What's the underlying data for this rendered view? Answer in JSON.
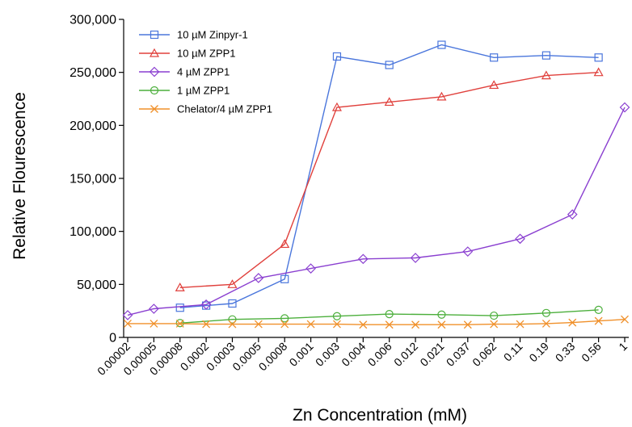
{
  "chart_data": {
    "type": "line",
    "xlabel": "Zn Concentration (mM)",
    "ylabel": "Relative Flourescence",
    "ylim": [
      0,
      300000
    ],
    "yticks": [
      "0",
      "50,000",
      "100,000",
      "150,000",
      "200,000",
      "250,000",
      "300,000"
    ],
    "yticks_values": [
      0,
      50000,
      100000,
      150000,
      200000,
      250000,
      300000
    ],
    "categories": [
      "0.00002",
      "0.00005",
      "0.00008",
      "0.0002",
      "0.0003",
      "0.0005",
      "0.0008",
      "0.001",
      "0.003",
      "0.004",
      "0.006",
      "0.012",
      "0.021",
      "0.037",
      "0.062",
      "0.11",
      "0.19",
      "0.33",
      "0.56",
      "1"
    ],
    "legend_position": "top-left",
    "grid": false,
    "series": [
      {
        "name": "10 µM Zinpyr-1",
        "color": "#4a76dc",
        "marker": "square",
        "values": [
          null,
          null,
          28000,
          30000,
          32000,
          null,
          55000,
          null,
          265000,
          null,
          257000,
          null,
          276000,
          null,
          264000,
          null,
          266000,
          null,
          264000,
          null
        ]
      },
      {
        "name": "10 µM ZPP1",
        "color": "#e0403c",
        "marker": "triangle",
        "values": [
          null,
          null,
          47000,
          null,
          50000,
          null,
          88000,
          null,
          217000,
          null,
          222000,
          null,
          227000,
          null,
          238000,
          null,
          247000,
          null,
          250000,
          null
        ]
      },
      {
        "name": "4 µM ZPP1",
        "color": "#8a3fd0",
        "marker": "diamond",
        "values": [
          21000,
          27000,
          null,
          31000,
          null,
          56000,
          null,
          65000,
          null,
          74000,
          null,
          75000,
          null,
          81000,
          null,
          93000,
          null,
          116000,
          null,
          217000
        ]
      },
      {
        "name": "1 µM ZPP1",
        "color": "#4caf3c",
        "marker": "circle",
        "values": [
          null,
          null,
          13500,
          null,
          17000,
          null,
          18000,
          null,
          20000,
          null,
          22000,
          null,
          21500,
          null,
          20500,
          null,
          23000,
          null,
          26000,
          null
        ]
      },
      {
        "name": "Chelator/4 µM ZPP1",
        "color": "#f0902a",
        "marker": "x",
        "values": [
          13000,
          13000,
          13000,
          12500,
          12500,
          12500,
          12500,
          12500,
          12500,
          12000,
          12000,
          12000,
          12000,
          12000,
          12500,
          12500,
          13000,
          14000,
          15500,
          17000
        ]
      }
    ]
  }
}
